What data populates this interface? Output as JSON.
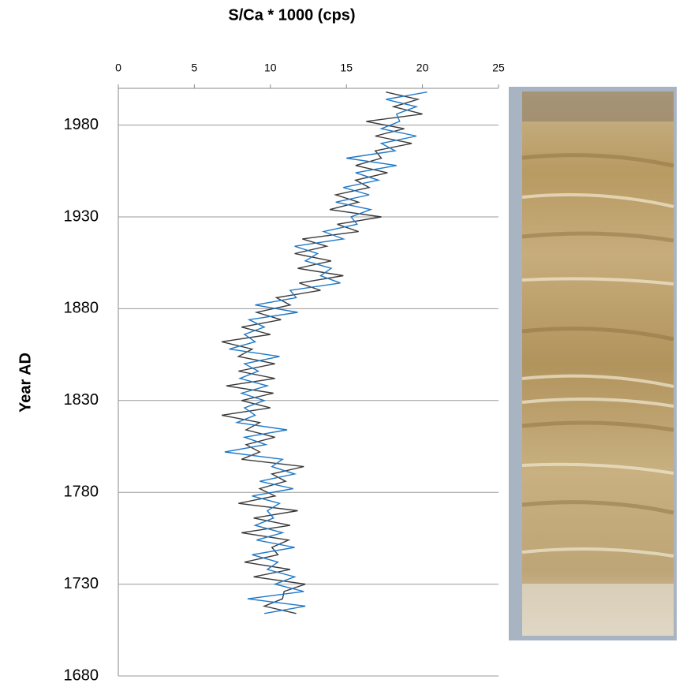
{
  "chart_data": {
    "type": "line",
    "orientation": "vertical",
    "title": "S/Ca * 1000 (cps)",
    "x_label": "Year AD",
    "x": [
      1714,
      1718,
      1722,
      1726,
      1730,
      1734,
      1738,
      1742,
      1746,
      1750,
      1754,
      1758,
      1762,
      1766,
      1770,
      1774,
      1778,
      1782,
      1786,
      1790,
      1794,
      1798,
      1802,
      1806,
      1810,
      1814,
      1818,
      1822,
      1826,
      1830,
      1834,
      1838,
      1842,
      1846,
      1850,
      1854,
      1858,
      1862,
      1866,
      1870,
      1874,
      1878,
      1882,
      1886,
      1890,
      1894,
      1898,
      1902,
      1906,
      1910,
      1914,
      1918,
      1922,
      1926,
      1930,
      1934,
      1938,
      1942,
      1946,
      1950,
      1954,
      1958,
      1962,
      1966,
      1970,
      1974,
      1978,
      1982,
      1986,
      1990,
      1994,
      1998
    ],
    "series": [
      {
        "color": "#3a3a3a",
        "values": [
          11.7,
          9.6,
          10.8,
          10.9,
          12.3,
          8.9,
          11.3,
          8.3,
          10.5,
          10.1,
          11.2,
          8.1,
          11.3,
          8.9,
          11.8,
          7.9,
          10.3,
          9.3,
          11.0,
          10.1,
          12.2,
          8.1,
          9.3,
          8.4,
          10.3,
          8.4,
          9.3,
          6.8,
          10.0,
          8.1,
          10.2,
          7.1,
          10.3,
          7.9,
          10.3,
          7.9,
          8.8,
          6.8,
          10.0,
          8.1,
          10.7,
          9.1,
          11.3,
          10.4,
          13.3,
          11.9,
          14.8,
          11.8,
          14.0,
          11.6,
          13.7,
          12.1,
          15.8,
          14.4,
          17.3,
          13.9,
          15.8,
          14.3,
          16.5,
          15.6,
          17.7,
          15.6,
          17.3,
          16.9,
          19.3,
          16.9,
          18.8,
          16.3,
          20.0,
          18.1,
          19.7,
          17.6
        ]
      },
      {
        "color": "#1f78c8",
        "values": [
          9.6,
          12.3,
          8.5,
          12.2,
          10.3,
          11.6,
          9.8,
          10.5,
          8.8,
          11.6,
          9.1,
          10.8,
          9.0,
          10.2,
          9.8,
          10.6,
          8.8,
          11.5,
          9.3,
          11.6,
          10.1,
          10.8,
          7.0,
          9.7,
          8.3,
          11.1,
          7.8,
          9.0,
          8.3,
          9.6,
          8.1,
          9.8,
          8.0,
          9.2,
          8.3,
          10.6,
          7.3,
          9.0,
          8.3,
          9.6,
          8.6,
          11.8,
          9.0,
          11.7,
          11.3,
          14.6,
          13.3,
          14.0,
          12.3,
          13.1,
          11.6,
          14.8,
          13.5,
          15.7,
          15.3,
          16.6,
          14.3,
          16.5,
          14.8,
          17.1,
          15.6,
          18.3,
          15.0,
          18.2,
          17.3,
          19.6,
          17.3,
          18.5,
          18.3,
          19.6,
          17.6,
          20.3
        ]
      }
    ],
    "xlim": [
      1680,
      2000
    ],
    "xticks": [
      1680,
      1730,
      1780,
      1830,
      1880,
      1930,
      1980
    ],
    "ylim": [
      0,
      25
    ],
    "yticks": [
      0,
      5,
      10,
      15,
      20,
      25
    ],
    "grid": true
  }
}
